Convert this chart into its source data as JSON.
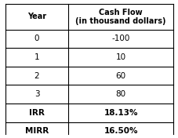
{
  "col1_header": "Year",
  "col2_header": "Cash Flow\n(in thousand dollars)",
  "rows": [
    [
      "0",
      "-100"
    ],
    [
      "1",
      "10"
    ],
    [
      "2",
      "60"
    ],
    [
      "3",
      "80"
    ]
  ],
  "bold_rows": [
    [
      "IRR",
      "18.13%"
    ],
    [
      "MIRR",
      "16.50%"
    ]
  ],
  "line_color": "#000000",
  "text_color": "#000000",
  "fig_bg": "#ffffff",
  "header_bold": true,
  "font_size_header": 7.0,
  "font_size_data": 7.5,
  "font_size_bold": 7.5
}
